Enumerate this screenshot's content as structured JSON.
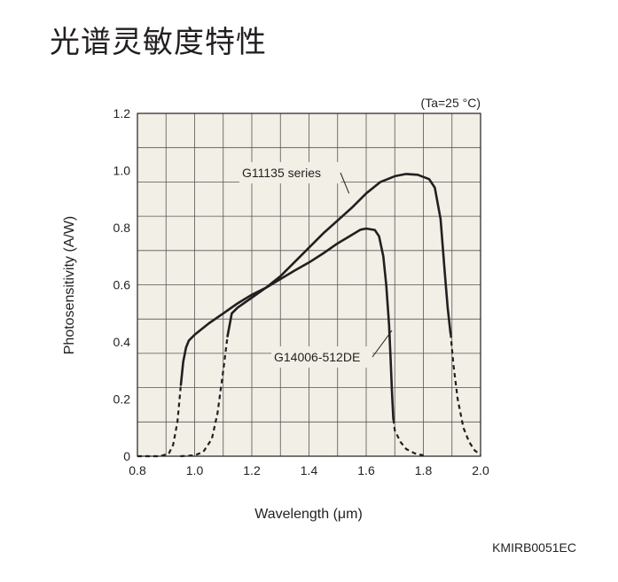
{
  "page": {
    "title": "光谱灵敏度特性",
    "code": "KMIRB0051EC"
  },
  "colors": {
    "plot_background": "#f1efe6",
    "grid": "#555555",
    "curve": "#231f20"
  },
  "chart_data": {
    "type": "line",
    "xlabel": "Wavelength (μm)",
    "ylabel": "Photosensitivity (A/W)",
    "condition": "(Ta=25 °C)",
    "xlim": [
      0.8,
      2.0
    ],
    "ylim": [
      0,
      1.2
    ],
    "x_ticks": [
      "0.8",
      "1.0",
      "1.2",
      "1.4",
      "1.6",
      "1.8",
      "2.0"
    ],
    "y_ticks": [
      "0",
      "0.2",
      "0.4",
      "0.6",
      "0.8",
      "1.0",
      "1.2"
    ],
    "grid": true,
    "series": [
      {
        "name": "G14006-512DE",
        "solid": [
          [
            0.952,
            0.25
          ],
          [
            0.96,
            0.33
          ],
          [
            0.97,
            0.38
          ],
          [
            0.98,
            0.405
          ],
          [
            1.0,
            0.425
          ],
          [
            1.05,
            0.465
          ],
          [
            1.1,
            0.5
          ],
          [
            1.15,
            0.535
          ],
          [
            1.2,
            0.565
          ],
          [
            1.25,
            0.59
          ],
          [
            1.3,
            0.62
          ],
          [
            1.35,
            0.65
          ],
          [
            1.4,
            0.678
          ],
          [
            1.45,
            0.71
          ],
          [
            1.5,
            0.745
          ],
          [
            1.55,
            0.775
          ],
          [
            1.58,
            0.793
          ],
          [
            1.6,
            0.797
          ],
          [
            1.63,
            0.792
          ],
          [
            1.645,
            0.77
          ],
          [
            1.66,
            0.7
          ],
          [
            1.67,
            0.6
          ],
          [
            1.68,
            0.46
          ],
          [
            1.685,
            0.35
          ],
          [
            1.69,
            0.23
          ],
          [
            1.695,
            0.13
          ]
        ],
        "dashed_left": [
          [
            0.8,
            0.0
          ],
          [
            0.88,
            0.0
          ],
          [
            0.91,
            0.01
          ],
          [
            0.925,
            0.04
          ],
          [
            0.94,
            0.12
          ],
          [
            0.952,
            0.25
          ]
        ],
        "dashed_right": [
          [
            1.695,
            0.13
          ],
          [
            1.7,
            0.09
          ],
          [
            1.72,
            0.05
          ],
          [
            1.74,
            0.025
          ],
          [
            1.77,
            0.01
          ],
          [
            1.8,
            0.003
          ]
        ],
        "label_anchor": [
          1.69,
          0.44
        ]
      },
      {
        "name": "G11135 series",
        "solid": [
          [
            1.115,
            0.42
          ],
          [
            1.13,
            0.5
          ],
          [
            1.15,
            0.52
          ],
          [
            1.2,
            0.555
          ],
          [
            1.25,
            0.59
          ],
          [
            1.3,
            0.63
          ],
          [
            1.35,
            0.68
          ],
          [
            1.4,
            0.73
          ],
          [
            1.45,
            0.78
          ],
          [
            1.5,
            0.825
          ],
          [
            1.55,
            0.87
          ],
          [
            1.6,
            0.92
          ],
          [
            1.65,
            0.96
          ],
          [
            1.7,
            0.98
          ],
          [
            1.74,
            0.988
          ],
          [
            1.78,
            0.985
          ],
          [
            1.82,
            0.97
          ],
          [
            1.84,
            0.94
          ],
          [
            1.86,
            0.83
          ],
          [
            1.875,
            0.64
          ],
          [
            1.885,
            0.52
          ],
          [
            1.895,
            0.43
          ]
        ],
        "dashed_left": [
          [
            0.95,
            0.0
          ],
          [
            1.0,
            0.003
          ],
          [
            1.03,
            0.015
          ],
          [
            1.06,
            0.06
          ],
          [
            1.08,
            0.15
          ],
          [
            1.1,
            0.3
          ],
          [
            1.115,
            0.42
          ]
        ],
        "dashed_right": [
          [
            1.895,
            0.43
          ],
          [
            1.905,
            0.32
          ],
          [
            1.92,
            0.2
          ],
          [
            1.94,
            0.1
          ],
          [
            1.96,
            0.05
          ],
          [
            1.98,
            0.02
          ],
          [
            2.0,
            0.005
          ]
        ],
        "label_anchor": [
          1.54,
          0.92
        ]
      }
    ]
  }
}
